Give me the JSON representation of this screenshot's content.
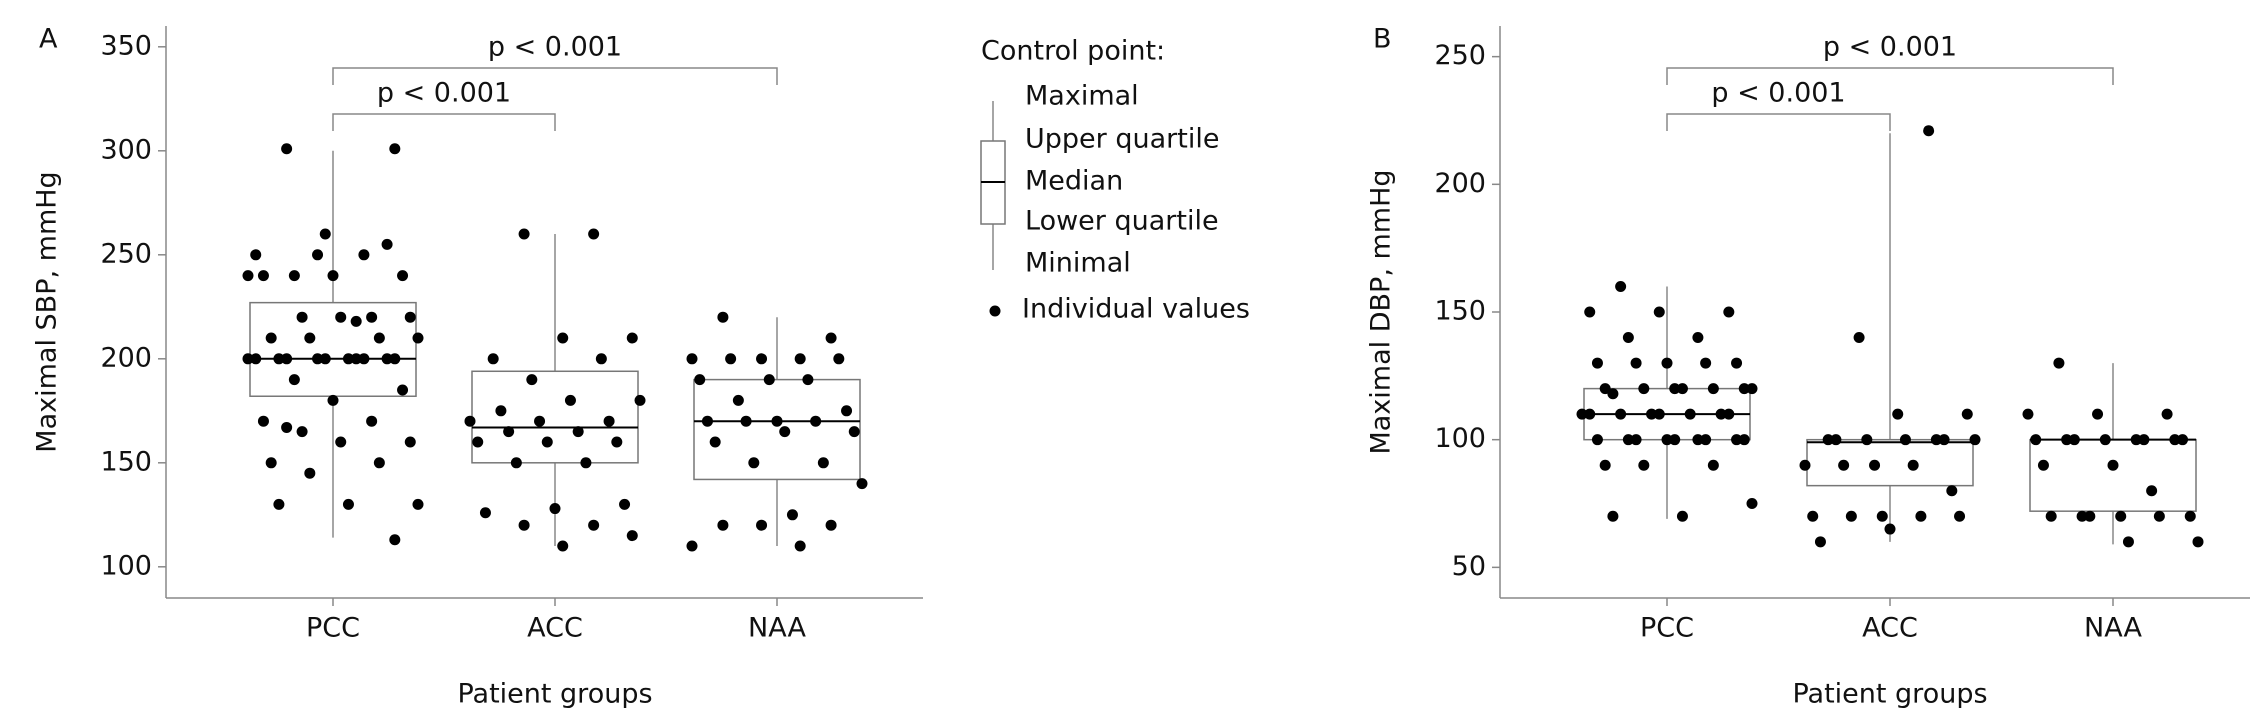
{
  "chart_data": [
    {
      "type": "box",
      "panel": "A",
      "y_label": "Maximal SBP, mmHg",
      "x_label": "Patient groups",
      "categories": [
        "PCC",
        "ACC",
        "NAA"
      ],
      "ylim": [
        85,
        360
      ],
      "yticks": [
        100,
        150,
        200,
        250,
        300,
        350
      ],
      "boxes": [
        {
          "min": 114,
          "q1": 182,
          "median": 200,
          "q3": 227,
          "max": 300
        },
        {
          "min": 110,
          "q1": 150,
          "median": 167,
          "q3": 194,
          "max": 260
        },
        {
          "min": 110,
          "q1": 142,
          "median": 170,
          "q3": 190,
          "max": 220
        }
      ],
      "points": [
        [
          301,
          301,
          260,
          250,
          250,
          240,
          240,
          240,
          240,
          220,
          220,
          220,
          220,
          210,
          210,
          210,
          210,
          200,
          200,
          200,
          200,
          200,
          200,
          200,
          200,
          200,
          200,
          200,
          190,
          185,
          180,
          170,
          170,
          165,
          160,
          160,
          150,
          150,
          145,
          130,
          130,
          130,
          255,
          250,
          240,
          218,
          167,
          113
        ],
        [
          260,
          260,
          210,
          210,
          200,
          200,
          190,
          180,
          180,
          175,
          170,
          170,
          170,
          165,
          165,
          160,
          160,
          160,
          150,
          150,
          130,
          128,
          126,
          120,
          120,
          115,
          110
        ],
        [
          220,
          210,
          200,
          200,
          200,
          200,
          200,
          190,
          190,
          190,
          180,
          175,
          170,
          170,
          170,
          170,
          165,
          165,
          160,
          150,
          150,
          140,
          125,
          120,
          120,
          120,
          110,
          110
        ]
      ],
      "annotations": [
        {
          "text": "p < 0.001",
          "between": [
            "PCC",
            "ACC"
          ]
        },
        {
          "text": "p < 0.001",
          "between": [
            "PCC",
            "NAA"
          ]
        }
      ],
      "legend": {
        "title": "Control point:",
        "items": [
          "Maximal",
          "Upper quartile",
          "Median",
          "Lower quartile",
          "Minimal"
        ],
        "points_label": "Individual values"
      }
    },
    {
      "type": "box",
      "panel": "B",
      "y_label": "Maximal DBP, mmHg",
      "x_label": "Patient groups",
      "categories": [
        "PCC",
        "ACC",
        "NAA"
      ],
      "ylim": [
        38,
        262
      ],
      "yticks": [
        50,
        100,
        150,
        200,
        250
      ],
      "boxes": [
        {
          "min": 69,
          "q1": 100,
          "median": 110,
          "q3": 120,
          "max": 160
        },
        {
          "min": 60,
          "q1": 82,
          "median": 99,
          "q3": 100,
          "max": 220
        },
        {
          "min": 59,
          "q1": 72,
          "median": 100,
          "q3": 100,
          "max": 130
        }
      ],
      "points": [
        [
          160,
          150,
          150,
          150,
          140,
          140,
          130,
          130,
          130,
          130,
          130,
          120,
          120,
          120,
          120,
          120,
          120,
          120,
          118,
          110,
          110,
          110,
          110,
          110,
          110,
          110,
          110,
          100,
          100,
          100,
          100,
          100,
          100,
          100,
          100,
          100,
          90,
          90,
          90,
          75,
          70,
          70
        ],
        [
          221,
          140,
          110,
          110,
          100,
          100,
          100,
          100,
          100,
          100,
          100,
          90,
          90,
          90,
          90,
          80,
          70,
          70,
          70,
          70,
          70,
          65,
          60
        ],
        [
          130,
          110,
          110,
          110,
          100,
          100,
          100,
          100,
          100,
          100,
          100,
          100,
          90,
          90,
          80,
          70,
          70,
          70,
          70,
          70,
          70,
          60,
          60
        ]
      ],
      "annotations": [
        {
          "text": "p < 0.001",
          "between": [
            "PCC",
            "ACC"
          ]
        },
        {
          "text": "p < 0.001",
          "between": [
            "PCC",
            "NAA"
          ]
        }
      ]
    }
  ]
}
